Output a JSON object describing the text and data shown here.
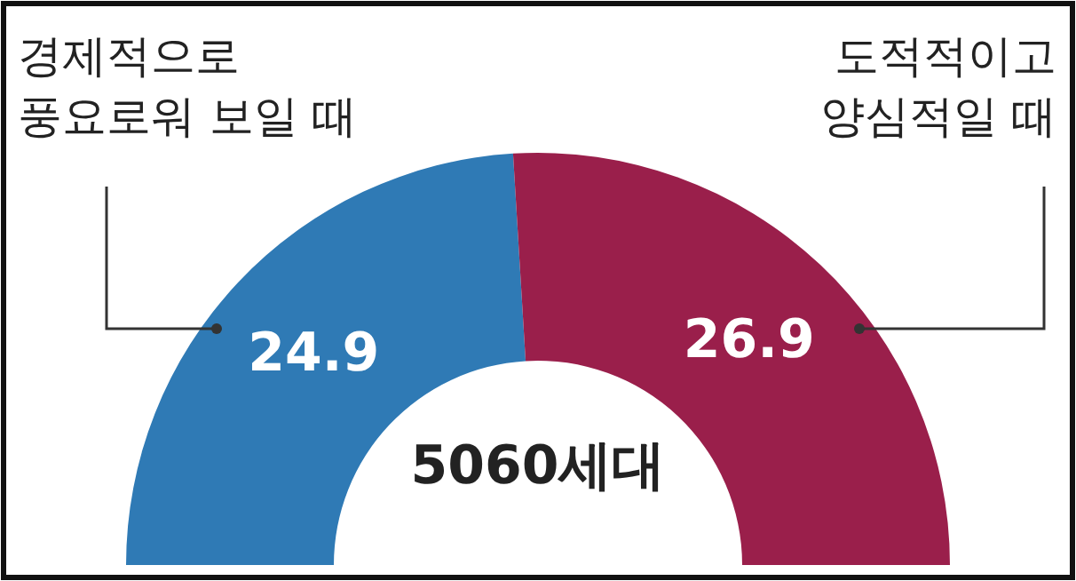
{
  "chart_data": {
    "type": "donut",
    "title": "5060세대",
    "categories": [
      "경제적으로\n풍요로워 보일 때",
      "도적적이고\n양심적일 때"
    ],
    "values": [
      24.9,
      26.9
    ],
    "colors": [
      "#2f7ab5",
      "#9a1f4b"
    ],
    "data_labels": true
  }
}
